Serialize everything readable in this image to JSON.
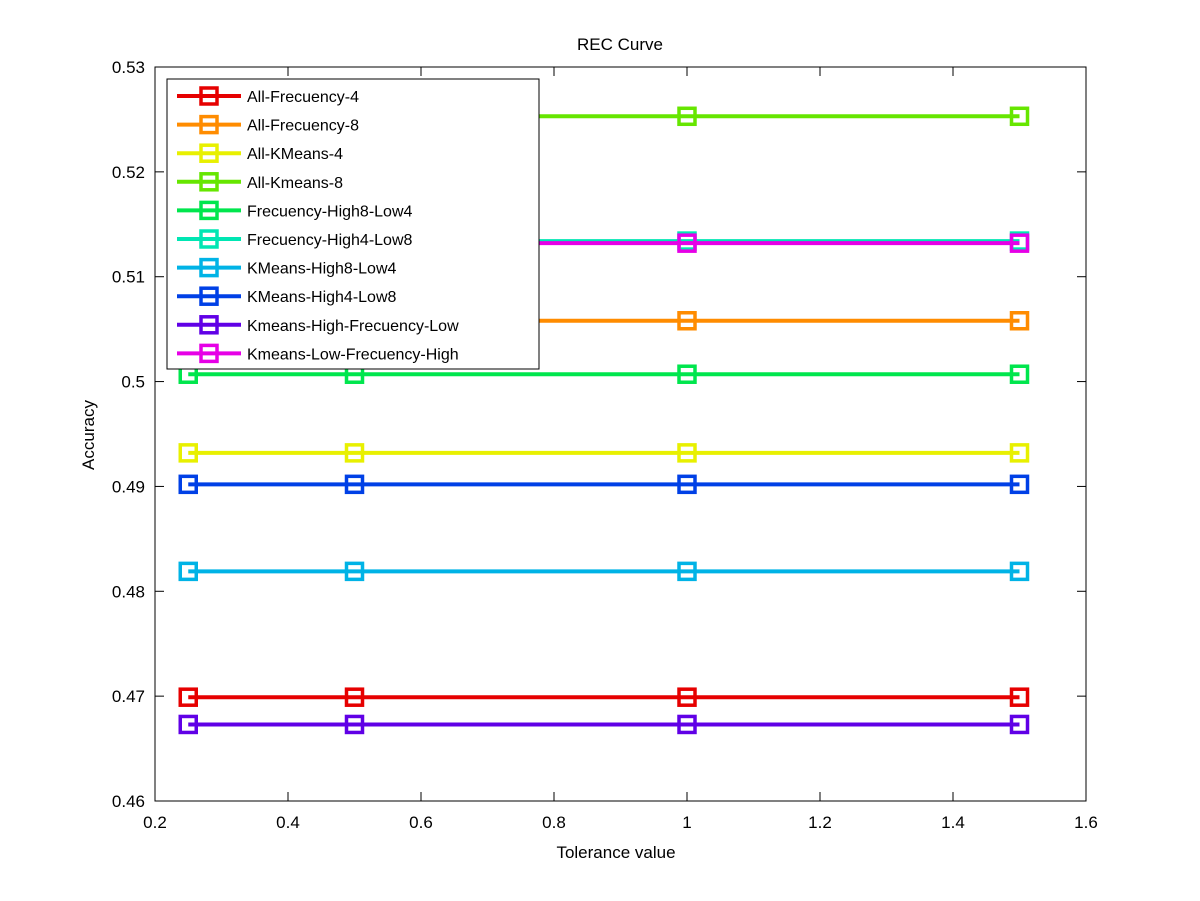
{
  "chart_data": {
    "type": "line",
    "title": "REC Curve",
    "xlabel": "Tolerance value",
    "ylabel": "Accuracy",
    "xlim": [
      0.2,
      1.6
    ],
    "ylim": [
      0.46,
      0.53
    ],
    "x_ticks": [
      "0.2",
      "0.4",
      "0.6",
      "0.8",
      "1",
      "1.2",
      "1.4",
      "1.6"
    ],
    "y_ticks": [
      "0.46",
      "0.47",
      "0.48",
      "0.49",
      "0.5",
      "0.51",
      "0.52",
      "0.53"
    ],
    "grid": false,
    "legend_position": "top-left",
    "marker": "square",
    "x": [
      0.25,
      0.5,
      1.0,
      1.5
    ],
    "series": [
      {
        "name": "All-Frecuency-4",
        "color": "#e60000",
        "values": [
          0.4699,
          0.4699,
          0.4699,
          0.4699
        ]
      },
      {
        "name": "All-Frecuency-8",
        "color": "#ff8c00",
        "values": [
          0.5058,
          0.5058,
          0.5058,
          0.5058
        ]
      },
      {
        "name": "All-KMeans-4",
        "color": "#e8f000",
        "values": [
          0.4932,
          0.4932,
          0.4932,
          0.4932
        ]
      },
      {
        "name": "All-Kmeans-8",
        "color": "#66e600",
        "values": [
          0.5253,
          0.5253,
          0.5253,
          0.5253
        ]
      },
      {
        "name": "Frecuency-High8-Low4",
        "color": "#00e64d",
        "values": [
          0.5007,
          0.5007,
          0.5007,
          0.5007
        ]
      },
      {
        "name": "Frecuency-High4-Low8",
        "color": "#00e6b3",
        "values": [
          0.5134,
          0.5134,
          0.5134,
          0.5134
        ]
      },
      {
        "name": "KMeans-High8-Low4",
        "color": "#00b3e6",
        "values": [
          0.4819,
          0.4819,
          0.4819,
          0.4819
        ]
      },
      {
        "name": "KMeans-High4-Low8",
        "color": "#0040e6",
        "values": [
          0.4902,
          0.4902,
          0.4902,
          0.4902
        ]
      },
      {
        "name": "Kmeans-High-Frecuency-Low",
        "color": "#6000e6",
        "values": [
          0.4673,
          0.4673,
          0.4673,
          0.4673
        ]
      },
      {
        "name": "Kmeans-Low-Frecuency-High",
        "color": "#e600e6",
        "values": [
          0.5132,
          0.5132,
          0.5132,
          0.5132
        ]
      }
    ]
  }
}
